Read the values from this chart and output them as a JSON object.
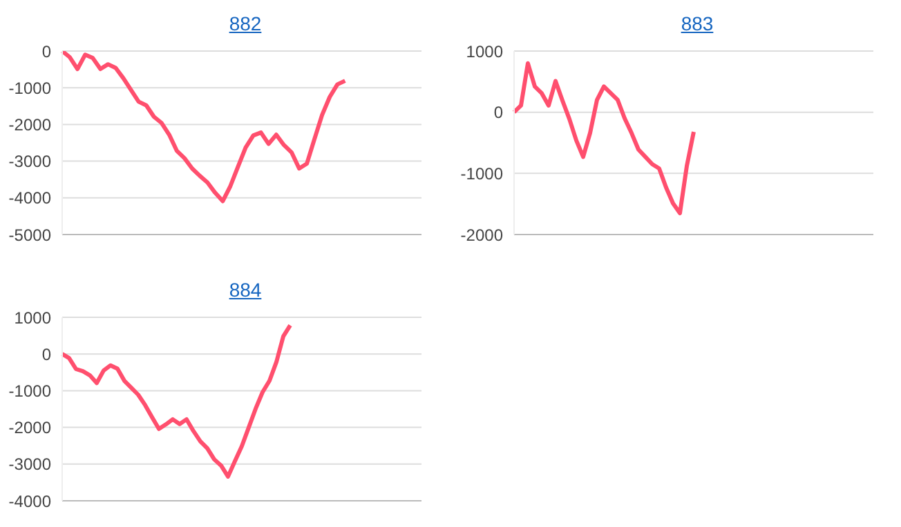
{
  "chart_data": [
    {
      "type": "line",
      "title": "882",
      "categories": [
        null,
        null,
        null,
        null,
        null,
        null,
        null,
        null,
        null,
        null,
        null,
        null,
        null,
        null,
        null,
        null,
        null,
        null,
        null,
        null,
        null,
        null,
        null,
        null,
        null,
        null,
        null,
        null,
        null,
        null,
        null,
        null,
        null,
        null,
        null,
        null,
        null,
        null,
        null,
        null,
        null,
        null,
        null,
        null,
        null,
        null,
        null,
        null
      ],
      "series": [
        {
          "color": "#ff4f6e",
          "values": [
            0,
            -170,
            -490,
            -100,
            -190,
            -490,
            -360,
            -460,
            -740,
            -1060,
            -1380,
            -1480,
            -1790,
            -1960,
            -2280,
            -2720,
            -2920,
            -3200,
            -3400,
            -3580,
            -3860,
            -4090,
            -3680,
            -3150,
            -2630,
            -2300,
            -2220,
            -2530,
            -2280,
            -2560,
            -2760,
            -3200,
            -3070,
            -2400,
            -1740,
            -1250,
            -910,
            -810,
            null,
            null,
            null,
            null,
            null,
            null,
            null,
            null,
            null,
            null
          ]
        }
      ],
      "ylim": [
        -5000,
        0
      ],
      "yticks": [
        -5000,
        -4000,
        -3000,
        -2000,
        -1000,
        0
      ],
      "grid": "y",
      "tick_labels": "y",
      "marker": "none",
      "line_style": "solid"
    },
    {
      "type": "line",
      "title": "883",
      "categories": [
        null,
        null,
        null,
        null,
        null,
        null,
        null,
        null,
        null,
        null,
        null,
        null,
        null,
        null,
        null,
        null,
        null,
        null,
        null,
        null,
        null,
        null,
        null,
        null,
        null,
        null,
        null,
        null,
        null,
        null,
        null,
        null,
        null,
        null,
        null,
        null,
        null,
        null,
        null,
        null,
        null,
        null,
        null,
        null,
        null,
        null,
        null,
        null,
        null,
        null,
        null,
        null,
        null
      ],
      "series": [
        {
          "color": "#ff4f6e",
          "values": [
            0,
            110,
            800,
            420,
            310,
            110,
            510,
            190,
            -110,
            -460,
            -730,
            -340,
            200,
            420,
            310,
            200,
            -100,
            -340,
            -610,
            -730,
            -850,
            -920,
            -1230,
            -1490,
            -1650,
            -880,
            -320,
            null,
            null,
            null,
            null,
            null,
            null,
            null,
            null,
            null,
            null,
            null,
            null,
            null,
            null,
            null,
            null,
            null,
            null,
            null,
            null,
            null,
            null,
            null,
            null,
            null,
            null
          ]
        }
      ],
      "ylim": [
        -2000,
        1000
      ],
      "yticks": [
        -2000,
        -1000,
        0,
        1000
      ],
      "grid": "y",
      "tick_labels": "y",
      "marker": "none",
      "line_style": "solid"
    },
    {
      "type": "line",
      "title": "884",
      "categories": [
        null,
        null,
        null,
        null,
        null,
        null,
        null,
        null,
        null,
        null,
        null,
        null,
        null,
        null,
        null,
        null,
        null,
        null,
        null,
        null,
        null,
        null,
        null,
        null,
        null,
        null,
        null,
        null,
        null,
        null,
        null,
        null,
        null,
        null,
        null,
        null,
        null,
        null,
        null,
        null,
        null,
        null,
        null,
        null,
        null,
        null,
        null,
        null,
        null,
        null,
        null,
        null,
        null
      ],
      "series": [
        {
          "color": "#ff4f6e",
          "values": [
            0,
            -110,
            -410,
            -470,
            -580,
            -790,
            -450,
            -310,
            -400,
            -730,
            -920,
            -1110,
            -1390,
            -1720,
            -2040,
            -1920,
            -1780,
            -1910,
            -1780,
            -2100,
            -2380,
            -2570,
            -2870,
            -3040,
            -3340,
            -2920,
            -2510,
            -2000,
            -1490,
            -1040,
            -730,
            -220,
            480,
            780,
            null,
            null,
            null,
            null,
            null,
            null,
            null,
            null,
            null,
            null,
            null,
            null,
            null,
            null,
            null,
            null,
            null,
            null,
            null
          ]
        }
      ],
      "ylim": [
        -4000,
        1000
      ],
      "yticks": [
        -4000,
        -3000,
        -2000,
        -1000,
        0,
        1000
      ],
      "grid": "y",
      "tick_labels": "y",
      "marker": "none",
      "line_style": "solid"
    }
  ]
}
